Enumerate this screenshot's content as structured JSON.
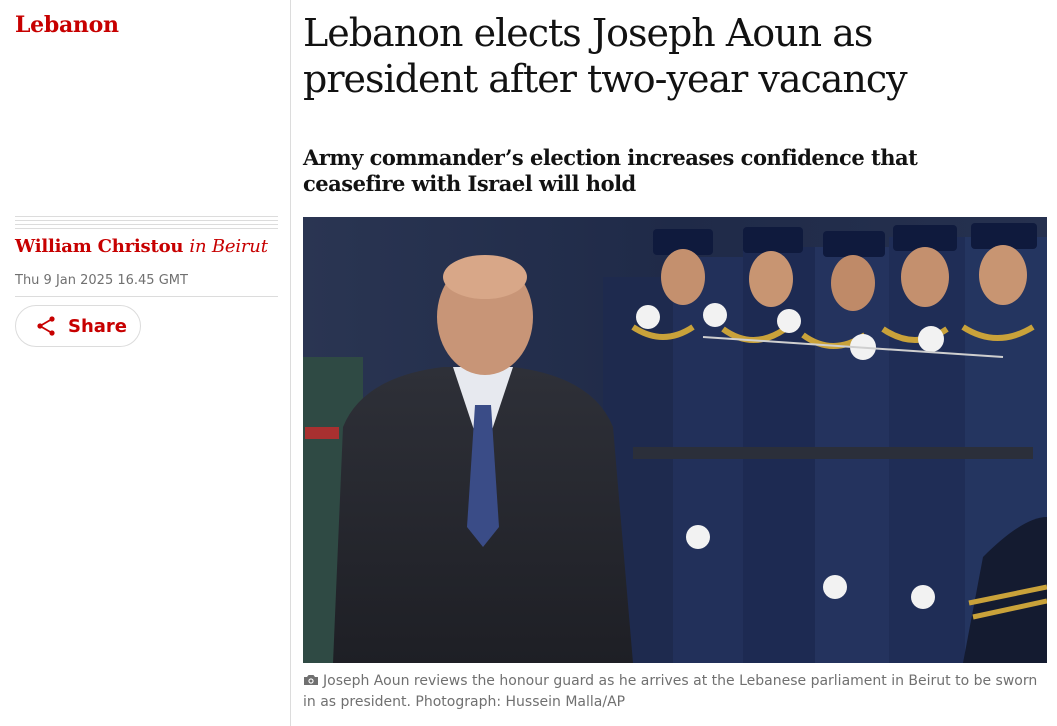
{
  "section": {
    "label": "Lebanon"
  },
  "byline": {
    "author": "William Christou",
    "location": "in Beirut"
  },
  "dateline": "Thu 9 Jan 2025 16.45 GMT",
  "share": {
    "label": "Share",
    "icon": "share-icon"
  },
  "headline": "Lebanon elects Joseph Aoun as president after two-year vacancy",
  "standfirst": "Army commander’s election increases confidence that ceasefire with Israel will hold",
  "photo": {
    "icon": "camera-icon"
  },
  "caption": "Joseph Aoun reviews the honour guard as he arrives at the Lebanese parliament in Beirut to be sworn in as president. Photograph: Hussein Malla/AP",
  "colors": {
    "accent": "#c70000",
    "text": "#121212",
    "muted": "#707070",
    "rule": "#dcdcdc"
  }
}
